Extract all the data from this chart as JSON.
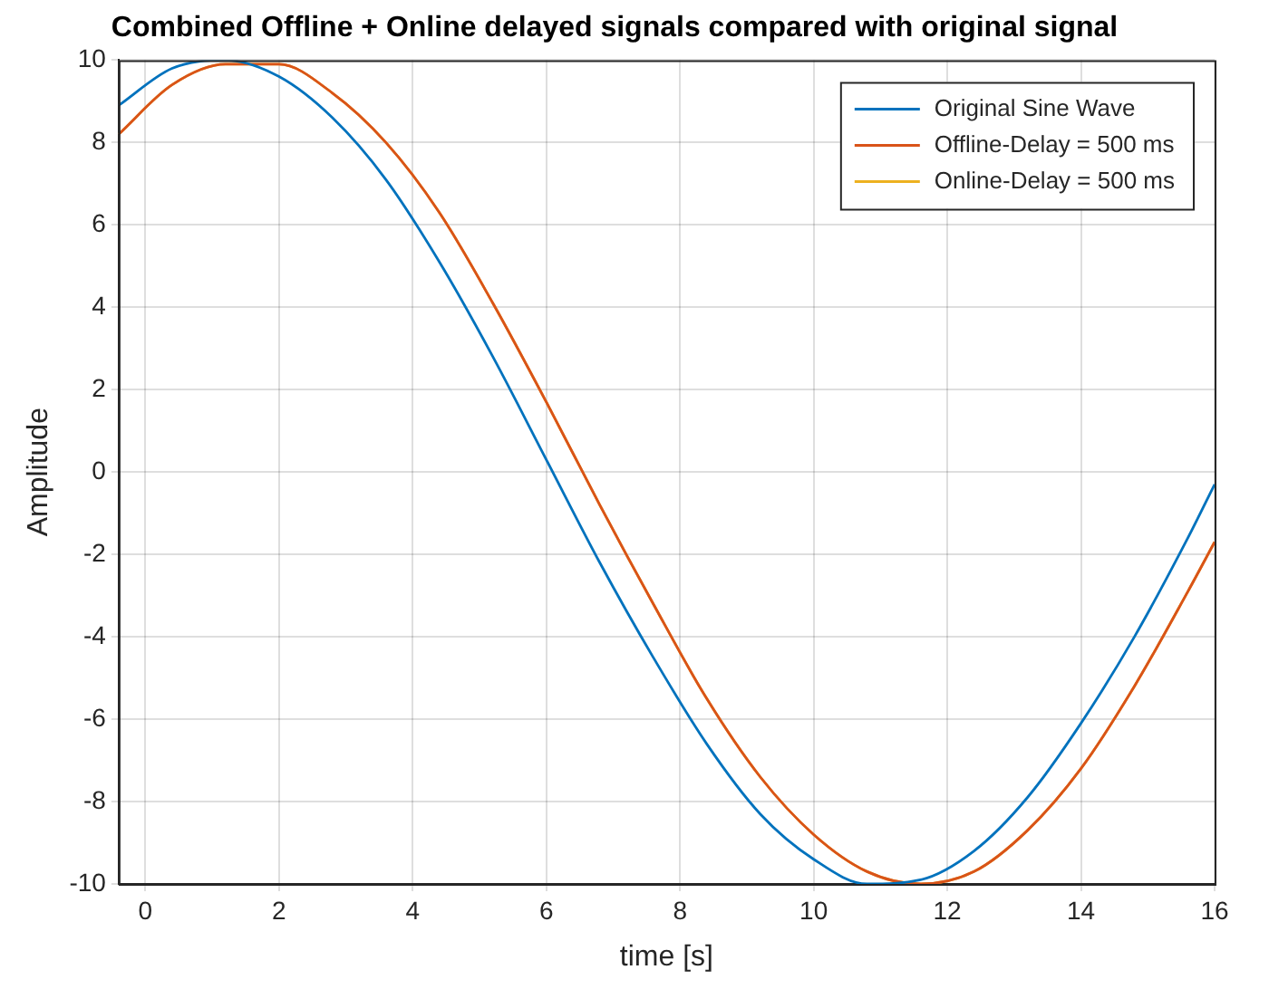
{
  "chart_data": {
    "type": "line",
    "title": "Combined Offline + Online delayed signals compared with original signal",
    "xlabel": "time [s]",
    "ylabel": "Amplitude",
    "x": [
      -0.4,
      0.4,
      1.2,
      2.0,
      2.8,
      3.6,
      4.4,
      5.2,
      6.0,
      6.8,
      7.6,
      8.4,
      9.2,
      10.0,
      10.8,
      11.6,
      12.4,
      13.2,
      14.0,
      14.8,
      15.6,
      16.0
    ],
    "series": [
      {
        "name": "Original Sine Wave",
        "color": "#0072bd",
        "values": [
          8.9,
          9.8,
          10.0,
          9.6,
          8.6,
          7.1,
          5.1,
          2.8,
          0.3,
          -2.2,
          -4.5,
          -6.6,
          -8.3,
          -9.4,
          -10.0,
          -9.9,
          -9.2,
          -7.9,
          -6.1,
          -4.0,
          -1.6,
          -0.3
        ]
      },
      {
        "name": "Offline-Delay = 500 ms",
        "color": "#d95319",
        "values": [
          8.2,
          9.4,
          9.9,
          9.9,
          9.2,
          8.0,
          6.3,
          4.1,
          1.7,
          -0.8,
          -3.2,
          -5.5,
          -7.4,
          -8.8,
          -9.7,
          -10.0,
          -9.7,
          -8.7,
          -7.2,
          -5.2,
          -2.9,
          -1.7
        ]
      },
      {
        "name": "Online-Delay = 500 ms",
        "color": "#edb120",
        "values": [
          8.2,
          9.4,
          9.9,
          9.9,
          9.2,
          8.0,
          6.3,
          4.1,
          1.7,
          -0.8,
          -3.2,
          -5.5,
          -7.4,
          -8.8,
          -9.7,
          -10.0,
          -9.7,
          -8.7,
          -7.2,
          -5.2,
          -2.9,
          -1.7
        ]
      }
    ],
    "xlim": [
      -0.4,
      16
    ],
    "xticks": [
      0,
      2,
      4,
      6,
      8,
      10,
      12,
      14,
      16
    ],
    "ylim": [
      -10,
      10
    ],
    "yticks": [
      -10,
      -8,
      -6,
      -4,
      -2,
      0,
      2,
      4,
      6,
      8,
      10
    ],
    "grid": true,
    "legend": "top right",
    "marker": "none",
    "line_style": "solid"
  }
}
